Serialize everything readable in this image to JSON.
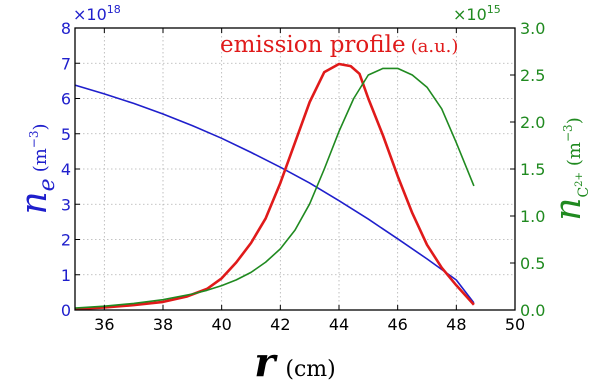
{
  "chart_data": {
    "type": "line",
    "title": "",
    "xlabel": {
      "symbol": "r",
      "unit": "(cm)"
    },
    "ylabel_left": {
      "symbol": "n",
      "subscript": "e",
      "unit_base": "(m",
      "unit_exp": "−3",
      "unit_close": ")"
    },
    "ylabel_right": {
      "symbol": "n",
      "subscript_base": "C",
      "subscript_sup": "2+",
      "unit_base": "(m",
      "unit_exp": "−3",
      "unit_close": ")"
    },
    "xlim": [
      35,
      50
    ],
    "ylim_left": [
      0,
      8
    ],
    "ylim_right": [
      0,
      3
    ],
    "left_multiplier": {
      "base": "×10",
      "exp": "18"
    },
    "right_multiplier": {
      "base": "×10",
      "exp": "15"
    },
    "x_ticks": [
      "36",
      "38",
      "40",
      "42",
      "44",
      "46",
      "48",
      "50"
    ],
    "left_ticks": [
      "0",
      "1",
      "2",
      "3",
      "4",
      "5",
      "6",
      "7",
      "8"
    ],
    "right_ticks": [
      "0.0",
      "0.5",
      "1.0",
      "1.5",
      "2.0",
      "2.5",
      "3.0"
    ],
    "grid": true,
    "annotation": {
      "main": "emission profile",
      "suffix": "(a.u.)"
    },
    "colors": {
      "ne": "#1f1fcc",
      "emission": "#e01a1a",
      "nc": "#208a20",
      "axis": "#000000",
      "grid": "#b0b0b0"
    },
    "series": [
      {
        "key": "ne",
        "axis": "left",
        "x": [
          35,
          36,
          37,
          38,
          39,
          40,
          41,
          42,
          43,
          44,
          45,
          46,
          47,
          48,
          48.6
        ],
        "y": [
          6.38,
          6.13,
          5.86,
          5.56,
          5.23,
          4.87,
          4.47,
          4.05,
          3.6,
          3.1,
          2.58,
          2.02,
          1.45,
          0.85,
          0.2
        ]
      },
      {
        "key": "emission",
        "axis": "left",
        "x": [
          35,
          36,
          37,
          38,
          38.8,
          39.5,
          40,
          40.5,
          41,
          41.5,
          42,
          42.5,
          43,
          43.5,
          44,
          44.4,
          44.7,
          45,
          45.5,
          46,
          46.5,
          47,
          47.5,
          48,
          48.6
        ],
        "y": [
          0.03,
          0.07,
          0.14,
          0.23,
          0.38,
          0.6,
          0.9,
          1.35,
          1.9,
          2.6,
          3.6,
          4.75,
          5.9,
          6.75,
          6.98,
          6.92,
          6.7,
          6.0,
          4.95,
          3.8,
          2.75,
          1.85,
          1.2,
          0.7,
          0.15
        ]
      },
      {
        "key": "nc",
        "axis": "right",
        "x": [
          35,
          36,
          37,
          38,
          39,
          39.5,
          40,
          40.5,
          41,
          41.5,
          42,
          42.5,
          43,
          43.5,
          44,
          44.5,
          45,
          45.5,
          46,
          46.5,
          47,
          47.5,
          48,
          48.6
        ],
        "y": [
          0.02,
          0.04,
          0.07,
          0.11,
          0.17,
          0.21,
          0.26,
          0.32,
          0.4,
          0.51,
          0.65,
          0.85,
          1.13,
          1.5,
          1.9,
          2.25,
          2.5,
          2.57,
          2.57,
          2.5,
          2.37,
          2.14,
          1.78,
          1.32
        ]
      }
    ]
  }
}
